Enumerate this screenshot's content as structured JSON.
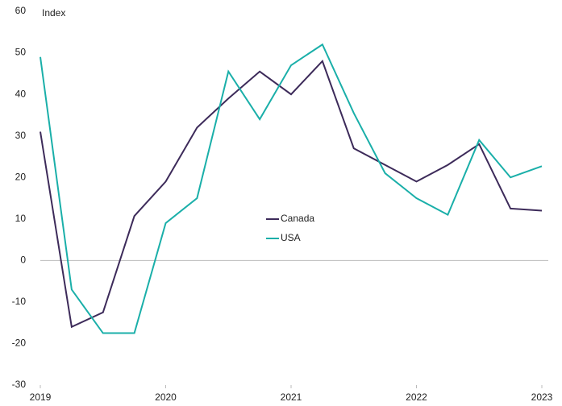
{
  "chart_data": {
    "type": "line",
    "y_label": "Index",
    "x": [
      2019,
      2019.25,
      2019.5,
      2019.75,
      2020,
      2020.25,
      2020.5,
      2020.75,
      2021,
      2021.25,
      2021.5,
      2021.75,
      2022,
      2022.25,
      2022.5,
      2022.75,
      2023
    ],
    "series": [
      {
        "name": "Canada",
        "color": "#3d2b5a",
        "values": [
          31,
          -16,
          -12.5,
          10.7,
          19,
          32,
          39,
          45.5,
          40,
          48,
          27,
          23,
          19,
          23,
          28,
          12.5,
          12
        ]
      },
      {
        "name": "USA",
        "color": "#1aafa9",
        "values": [
          49,
          -7,
          -17.5,
          -17.5,
          9,
          15,
          45.5,
          34,
          47,
          52,
          35.5,
          21,
          15,
          11,
          29,
          20,
          22.7
        ]
      }
    ],
    "xlim": [
      2019,
      2023
    ],
    "xticks": [
      2019,
      2020,
      2021,
      2022,
      2023
    ],
    "ylim": [
      -30,
      60
    ],
    "yticks": [
      -30,
      -20,
      -10,
      0,
      10,
      20,
      30,
      40,
      50,
      60
    ],
    "legend": "center"
  }
}
